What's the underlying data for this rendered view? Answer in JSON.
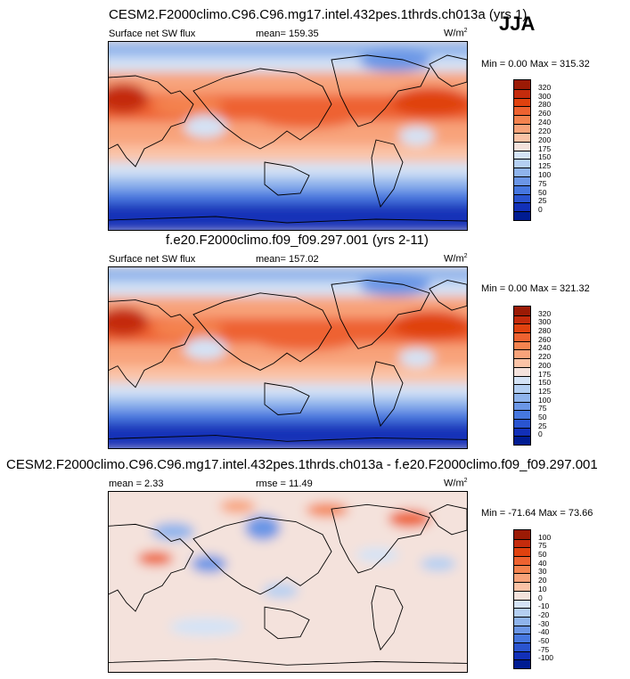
{
  "season": "JJA",
  "panels": [
    {
      "title": "CESM2.F2000climo.C96.C96.mg17.intel.432pes.1thrds.ch013a (yrs 1)",
      "left_label": "Surface net SW flux",
      "center_label": "mean= 159.35",
      "units": "W/m",
      "units_sup": "2",
      "minmax": "Min =  0.00 Max = 315.32",
      "colorbar": {
        "levels": [
          "320",
          "300",
          "280",
          "260",
          "240",
          "220",
          "200",
          "175",
          "150",
          "125",
          "100",
          "75",
          "50",
          "25",
          "0"
        ],
        "colors": [
          "#9b1a05",
          "#c42b0c",
          "#e0420f",
          "#ee6230",
          "#f4834f",
          "#f8a37a",
          "#fbc3a6",
          "#f4e2dc",
          "#d4e3f6",
          "#b4cff2",
          "#8fb4ec",
          "#6b96e6",
          "#4677df",
          "#2a54cf",
          "#1230b8",
          "#001c92"
        ]
      },
      "scheme": "diverging-flux",
      "variant": 1
    },
    {
      "title": "f.e20.F2000climo.f09_f09.297.001 (yrs 2-11)",
      "left_label": "Surface net SW flux",
      "center_label": "mean= 157.02",
      "units": "W/m",
      "units_sup": "2",
      "minmax": "Min =  0.00 Max = 321.32",
      "colorbar": {
        "levels": [
          "320",
          "300",
          "280",
          "260",
          "240",
          "220",
          "200",
          "175",
          "150",
          "125",
          "100",
          "75",
          "50",
          "25",
          "0"
        ],
        "colors": [
          "#9b1a05",
          "#c42b0c",
          "#e0420f",
          "#ee6230",
          "#f4834f",
          "#f8a37a",
          "#fbc3a6",
          "#f4e2dc",
          "#d4e3f6",
          "#b4cff2",
          "#8fb4ec",
          "#6b96e6",
          "#4677df",
          "#2a54cf",
          "#1230b8",
          "#001c92"
        ]
      },
      "scheme": "diverging-flux",
      "variant": 2
    },
    {
      "title": "CESM2.F2000climo.C96.C96.mg17.intel.432pes.1thrds.ch013a - f.e20.F2000climo.f09_f09.297.001",
      "left_label": "mean =  2.33",
      "center_label": "rmse =  11.49",
      "units": "W/m",
      "units_sup": "2",
      "minmax": "Min = -71.64 Max =  73.66",
      "colorbar": {
        "levels": [
          "100",
          "75",
          "50",
          "40",
          "30",
          "20",
          "10",
          "0",
          "-10",
          "-20",
          "-30",
          "-40",
          "-50",
          "-75",
          "-100"
        ],
        "colors": [
          "#9b1a05",
          "#c42b0c",
          "#e0420f",
          "#ee6230",
          "#f4834f",
          "#f8a37a",
          "#fbc3a6",
          "#f4e2dc",
          "#d4e3f6",
          "#b4cff2",
          "#8fb4ec",
          "#6b96e6",
          "#4677df",
          "#2a54cf",
          "#1230b8",
          "#001c92"
        ]
      },
      "scheme": "difference",
      "variant": 3
    }
  ]
}
